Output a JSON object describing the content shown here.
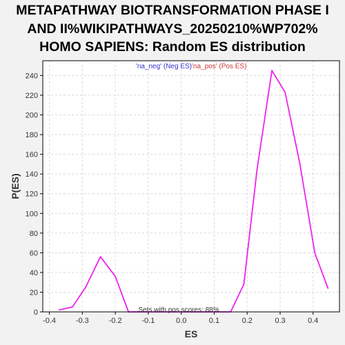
{
  "chart_data": {
    "type": "line",
    "title_lines": [
      "METAPATHWAY BIOTRANSFORMATION PHASE I",
      "AND II%WIKIPATHWAYS_20250210%WP702%",
      "HOMO SAPIENS: Random ES distribution"
    ],
    "xlabel": "ES",
    "ylabel": "P(ES)",
    "xlim": [
      -0.42,
      0.48
    ],
    "ylim": [
      0,
      255
    ],
    "xticks": [
      -0.4,
      -0.3,
      -0.2,
      -0.1,
      0.0,
      0.1,
      0.2,
      0.3,
      0.4
    ],
    "xtick_labels": [
      "-0.4",
      "-0.3",
      "-0.2",
      "-0.1",
      "0.0",
      "0.1",
      "0.2",
      "0.3",
      "0.4"
    ],
    "yticks": [
      0,
      20,
      40,
      60,
      80,
      100,
      120,
      140,
      160,
      180,
      200,
      220,
      240
    ],
    "ytick_labels": [
      "0",
      "20",
      "40",
      "60",
      "80",
      "100",
      "120",
      "140",
      "160",
      "180",
      "200",
      "220",
      "240"
    ],
    "grid": true,
    "legend": {
      "placement": "top-center",
      "entries": [
        {
          "label": "'na_neg' (Neg ES)",
          "color": "#3333cc"
        },
        {
          "label": "'na_pos' (Pos ES)",
          "color": "#cc3333"
        }
      ]
    },
    "annotation": "Sets with pos scores: 88%",
    "series": [
      {
        "color": "#ee22ee",
        "x": [
          -0.37,
          -0.33,
          -0.29,
          -0.245,
          -0.2,
          -0.16,
          -0.115,
          -0.07,
          -0.025,
          0.02,
          0.065,
          0.11,
          0.15,
          0.19,
          0.23,
          0.275,
          0.315,
          0.36,
          0.405,
          0.445
        ],
        "y": [
          2,
          5,
          25,
          56,
          36,
          0,
          0,
          0,
          0,
          0,
          0,
          0,
          0,
          28,
          145,
          245,
          223,
          150,
          60,
          24
        ]
      }
    ]
  }
}
